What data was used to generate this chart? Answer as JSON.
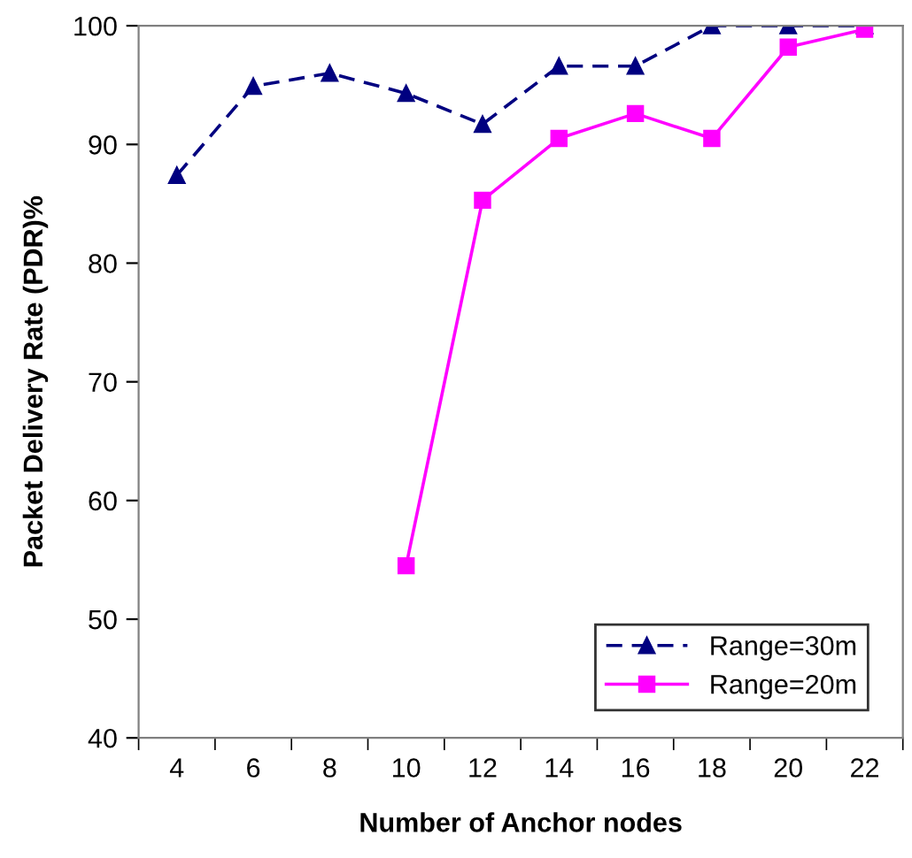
{
  "chart_data": {
    "type": "line",
    "xlabel": "Number of Anchor nodes",
    "ylabel": "Packet Delivery Rate (PDR)%",
    "categories": [
      "4",
      "6",
      "8",
      "10",
      "12",
      "14",
      "16",
      "18",
      "20",
      "22"
    ],
    "series": [
      {
        "name": "Range=30m",
        "color": "#000080",
        "values": [
          87.4,
          94.9,
          96.0,
          94.3,
          91.7,
          96.6,
          96.6,
          100,
          100,
          100
        ],
        "marker": "triangle",
        "line_style": "dashed"
      },
      {
        "name": "Range=20m",
        "color": "#ff00ff",
        "values": [
          null,
          null,
          null,
          54.5,
          85.3,
          90.5,
          92.6,
          90.5,
          98.2,
          99.7
        ],
        "marker": "square",
        "line_style": "solid"
      }
    ],
    "ylim": [
      40,
      100
    ],
    "yticks": [
      40,
      50,
      60,
      70,
      80,
      90,
      100
    ],
    "grid": false,
    "legend": "bottom right"
  }
}
